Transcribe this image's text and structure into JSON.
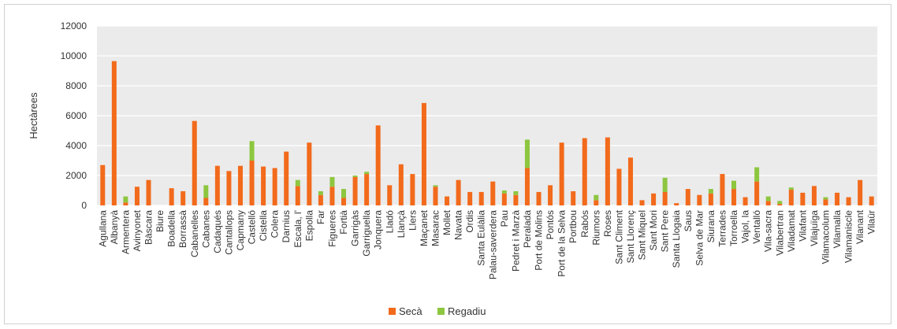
{
  "chart_data": {
    "type": "bar",
    "stacked": true,
    "ylabel": "Hectàrees",
    "ylim": [
      0,
      12000
    ],
    "yticks": [
      0,
      2000,
      4000,
      6000,
      8000,
      10000,
      12000
    ],
    "grid": true,
    "legend_position": "bottom-center",
    "categories": [
      "Agullana",
      "Albanyà",
      "Armentera",
      "Avinyonet",
      "Bàscara",
      "Biure",
      "Boadella",
      "Borrassà",
      "Cabanelles",
      "Cabanes",
      "Cadaqués",
      "Cantallops",
      "Capmany",
      "Castelló",
      "Cistella",
      "Colera",
      "Darnius",
      "Escala, l'",
      "Espolla",
      "Far",
      "Figueres",
      "Fortià",
      "Garrigàs",
      "Garriguella",
      "Jonquera",
      "Lladó",
      "Llançà",
      "Llers",
      "Maçanet",
      "Masarac",
      "Mollet",
      "Navata",
      "Ordis",
      "Santa Eulàlia",
      "Palau-saverdera",
      "Pau",
      "Pedret i Marzà",
      "Peralada",
      "Port de Molins",
      "Pontós",
      "Port de la Selva",
      "Portbou",
      "Rabós",
      "Riumors",
      "Roses",
      "Sant Climent",
      "Sant Llorenç",
      "Sant Miquel",
      "Sant Mori",
      "Sant Pere",
      "Santa Llogaia",
      "Saus",
      "Selva de Mar",
      "Siurana",
      "Terrades",
      "Torroella",
      "Vajol, la",
      "Ventalló",
      "Vila-sacra",
      "Vilabertran",
      "Viladamat",
      "Vilafant",
      "Vilajuïga",
      "Vilamacolum",
      "Vilamalla",
      "Vilamaniscle",
      "Vilanant",
      "Vilaür"
    ],
    "series": [
      {
        "name": "Secà",
        "color": "#f26a1b",
        "values": [
          2700,
          9650,
          200,
          1250,
          1700,
          0,
          1150,
          950,
          5650,
          500,
          2650,
          2300,
          2650,
          3000,
          2600,
          2500,
          3600,
          1300,
          4200,
          700,
          1250,
          500,
          1900,
          2100,
          5350,
          1350,
          2750,
          2100,
          6850,
          1250,
          600,
          1700,
          900,
          900,
          1600,
          800,
          700,
          2500,
          900,
          1350,
          4200,
          950,
          4500,
          350,
          4550,
          2450,
          3200,
          350,
          800,
          900,
          150,
          1100,
          700,
          800,
          2100,
          1100,
          550,
          1600,
          300,
          100,
          1050,
          850,
          1300,
          400,
          850,
          550,
          1700,
          600
        ]
      },
      {
        "name": "Regadiu",
        "color": "#8dc63f",
        "values": [
          0,
          0,
          400,
          0,
          0,
          0,
          0,
          0,
          0,
          850,
          0,
          0,
          0,
          1300,
          0,
          0,
          0,
          400,
          0,
          250,
          650,
          600,
          100,
          150,
          0,
          0,
          0,
          0,
          0,
          100,
          0,
          0,
          0,
          0,
          0,
          200,
          250,
          1900,
          0,
          0,
          0,
          0,
          0,
          350,
          0,
          0,
          0,
          0,
          0,
          950,
          0,
          0,
          0,
          300,
          0,
          550,
          0,
          950,
          300,
          200,
          150,
          0,
          0,
          150,
          0,
          0,
          0,
          0
        ]
      }
    ]
  }
}
